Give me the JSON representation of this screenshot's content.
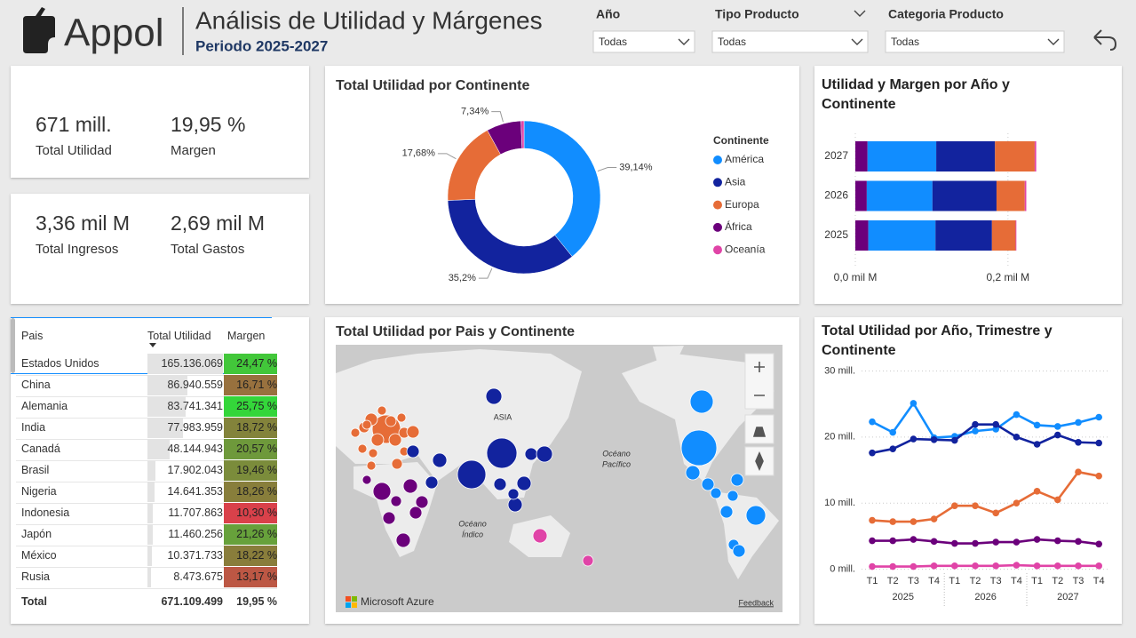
{
  "header": {
    "brand": "Appol",
    "title": "Análisis de Utilidad y Márgenes",
    "subtitle": "Periodo 2025-2027"
  },
  "filters": [
    {
      "label": "Año",
      "value": "Todas"
    },
    {
      "label": "Tipo Producto",
      "value": "Todas"
    },
    {
      "label": "Categoria Producto",
      "value": "Todas"
    }
  ],
  "kpis": [
    {
      "value": "671 mill.",
      "label": "Total Utilidad"
    },
    {
      "value": "19,95 %",
      "label": "Margen"
    },
    {
      "value": "3,36 mil M",
      "label": "Total Ingresos"
    },
    {
      "value": "2,69 mil M",
      "label": "Total Gastos"
    }
  ],
  "table": {
    "columns": [
      "Pais",
      "Total Utilidad",
      "Margen"
    ],
    "rows": [
      {
        "pais": "Estados Unidos",
        "utilidad": 165136069,
        "utilidad_label": "165.136.069",
        "margen": 24.47,
        "margen_label": "24,47 %"
      },
      {
        "pais": "China",
        "utilidad": 86940559,
        "utilidad_label": "86.940.559",
        "margen": 16.71,
        "margen_label": "16,71 %"
      },
      {
        "pais": "Alemania",
        "utilidad": 83741341,
        "utilidad_label": "83.741.341",
        "margen": 25.75,
        "margen_label": "25,75 %"
      },
      {
        "pais": "India",
        "utilidad": 77983959,
        "utilidad_label": "77.983.959",
        "margen": 18.72,
        "margen_label": "18,72 %"
      },
      {
        "pais": "Canadá",
        "utilidad": 48144943,
        "utilidad_label": "48.144.943",
        "margen": 20.57,
        "margen_label": "20,57 %"
      },
      {
        "pais": "Brasil",
        "utilidad": 17902043,
        "utilidad_label": "17.902.043",
        "margen": 19.46,
        "margen_label": "19,46 %"
      },
      {
        "pais": "Nigeria",
        "utilidad": 14641353,
        "utilidad_label": "14.641.353",
        "margen": 18.26,
        "margen_label": "18,26 %"
      },
      {
        "pais": "Indonesia",
        "utilidad": 11707863,
        "utilidad_label": "11.707.863",
        "margen": 10.3,
        "margen_label": "10,30 %"
      },
      {
        "pais": "Japón",
        "utilidad": 11460256,
        "utilidad_label": "11.460.256",
        "margen": 21.26,
        "margen_label": "21,26 %"
      },
      {
        "pais": "México",
        "utilidad": 10371733,
        "utilidad_label": "10.371.733",
        "margen": 18.22,
        "margen_label": "18,22 %"
      },
      {
        "pais": "Rusia",
        "utilidad": 8473675,
        "utilidad_label": "8.473.675",
        "margen": 13.17,
        "margen_label": "13,17 %"
      }
    ],
    "total": [
      "Total",
      "671.109.499",
      "19,95 %"
    ],
    "margin_colors": {
      "low": "#d9414a",
      "mid": "#8b7b3b",
      "high": "#34d63a"
    },
    "bar_color": "#e3e3e3"
  },
  "map": {
    "title": "Total Utilidad por Pais y Continente",
    "labels": [
      "ASIA",
      "Océano",
      "Pacífico",
      "Océano",
      "Índico"
    ],
    "attribution": "Microsoft Azure",
    "feedback": "Feedback"
  },
  "chart_data": [
    {
      "type": "pie",
      "title": "Total Utilidad por Continente",
      "legend_title": "Continente",
      "categories": [
        "América",
        "Asia",
        "Europa",
        "África",
        "Oceanía"
      ],
      "values": [
        39.14,
        35.2,
        17.68,
        7.34,
        0.64
      ],
      "value_labels": [
        "39,14%",
        "35,2%",
        "17,68%",
        "7,34%",
        null
      ],
      "colors": [
        "#118dff",
        "#12239e",
        "#e66c37",
        "#6b007b",
        "#e044a7"
      ]
    },
    {
      "type": "bar",
      "orientation": "horizontal",
      "stacked": true,
      "title": "Utilidad y Margen por Año y Continente",
      "categories": [
        "2027",
        "2026",
        "2025"
      ],
      "series": [
        {
          "name": "África",
          "color": "#6b007b",
          "values": [
            0.016,
            0.015,
            0.017
          ]
        },
        {
          "name": "América",
          "color": "#118dff",
          "values": [
            0.09,
            0.086,
            0.088
          ]
        },
        {
          "name": "Asia",
          "color": "#12239e",
          "values": [
            0.077,
            0.084,
            0.074
          ]
        },
        {
          "name": "Europa",
          "color": "#e66c37",
          "values": [
            0.052,
            0.037,
            0.031
          ]
        },
        {
          "name": "Oceanía",
          "color": "#e044a7",
          "values": [
            0.002,
            0.002,
            0.001
          ]
        }
      ],
      "xlim": [
        0,
        0.27
      ],
      "xticks": [
        {
          "value": 0,
          "label": "0,0 mil M"
        },
        {
          "value": 0.2,
          "label": "0,2 mil M"
        }
      ]
    },
    {
      "type": "line",
      "title": "Total Utilidad por Año, Trimestre y Continente",
      "categories": [
        "T1",
        "T2",
        "T3",
        "T4",
        "T1",
        "T2",
        "T3",
        "T4",
        "T1",
        "T2",
        "T3",
        "T4"
      ],
      "years": [
        "2025",
        "2026",
        "2027"
      ],
      "series": [
        {
          "name": "América",
          "color": "#118dff",
          "values": [
            22.3,
            20.7,
            25.1,
            19.9,
            20.1,
            20.9,
            21.2,
            23.4,
            21.8,
            21.6,
            22.2,
            23.0
          ]
        },
        {
          "name": "Asia",
          "color": "#12239e",
          "values": [
            17.6,
            18.2,
            19.7,
            19.6,
            19.5,
            21.9,
            21.9,
            20.0,
            18.9,
            20.3,
            19.2,
            19.1
          ]
        },
        {
          "name": "Europa",
          "color": "#e66c37",
          "values": [
            7.4,
            7.2,
            7.2,
            7.6,
            9.6,
            9.6,
            8.5,
            10.0,
            11.8,
            10.5,
            14.7,
            14.1
          ]
        },
        {
          "name": "África",
          "color": "#6b007b",
          "values": [
            4.3,
            4.3,
            4.5,
            4.2,
            3.9,
            3.9,
            4.1,
            4.1,
            4.5,
            4.3,
            4.2,
            3.8
          ]
        },
        {
          "name": "Oceanía",
          "color": "#e044a7",
          "values": [
            0.4,
            0.4,
            0.4,
            0.5,
            0.5,
            0.5,
            0.5,
            0.6,
            0.5,
            0.5,
            0.5,
            0.5
          ]
        }
      ],
      "ylim": [
        -1,
        31
      ],
      "yticks": [
        {
          "value": 0,
          "label": "0 mill."
        },
        {
          "value": 10,
          "label": "10 mill."
        },
        {
          "value": 20,
          "label": "20 mill."
        },
        {
          "value": 30,
          "label": "30 mill."
        }
      ]
    }
  ]
}
